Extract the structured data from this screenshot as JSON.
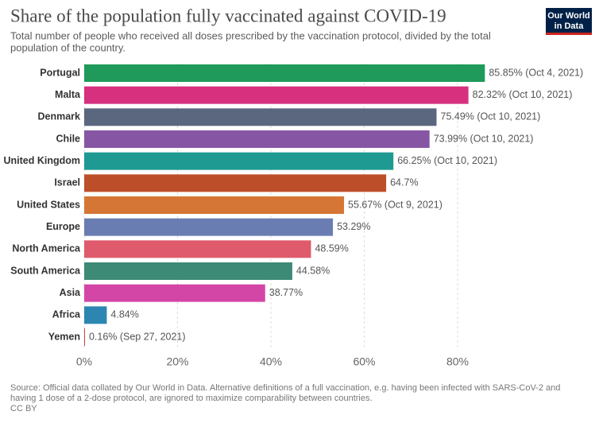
{
  "chart_data": {
    "type": "bar",
    "orientation": "horizontal",
    "title": "Share of the population fully vaccinated against COVID-19",
    "subtitle": [
      "Total number of people who received all doses prescribed by the vaccination protocol, divided by the total",
      "population of the country."
    ],
    "logo": [
      "Our World",
      "in Data"
    ],
    "categories": [
      "Portugal",
      "Malta",
      "Denmark",
      "Chile",
      "United Kingdom",
      "Israel",
      "United States",
      "Europe",
      "North America",
      "South America",
      "Asia",
      "Africa",
      "Yemen"
    ],
    "values": [
      85.85,
      82.32,
      75.49,
      73.99,
      66.25,
      64.7,
      55.67,
      53.29,
      48.59,
      44.58,
      38.77,
      4.84,
      0.16
    ],
    "value_labels": [
      "85.85% (Oct 4, 2021)",
      "82.32% (Oct 10, 2021)",
      "75.49% (Oct 10, 2021)",
      "73.99% (Oct 10, 2021)",
      "66.25% (Oct 10, 2021)",
      "64.7%",
      "55.67% (Oct 9, 2021)",
      "53.29%",
      "48.59%",
      "44.58%",
      "38.77%",
      "4.84%",
      "0.16% (Sep 27, 2021)"
    ],
    "colors": [
      "#1f9a5a",
      "#d6307e",
      "#5a677e",
      "#8656a4",
      "#1e9a93",
      "#bc4f2a",
      "#d67636",
      "#6a7db2",
      "#de5a6c",
      "#3d8a76",
      "#d446a6",
      "#2d86b2",
      "#c23b2e"
    ],
    "xlim": [
      0,
      90
    ],
    "xticks": [
      {
        "value": 0,
        "label": "0%"
      },
      {
        "value": 20,
        "label": "20%"
      },
      {
        "value": 40,
        "label": "40%"
      },
      {
        "value": 60,
        "label": "60%"
      },
      {
        "value": 80,
        "label": "80%"
      }
    ],
    "grid": true,
    "footer": [
      "Source: Official data collated by Our World in Data. Alternative definitions of a full vaccination, e.g. having been infected with SARS-CoV-2 and",
      "having 1 dose of a 2-dose protocol, are ignored to maximize comparability between countries.",
      "CC BY"
    ]
  }
}
